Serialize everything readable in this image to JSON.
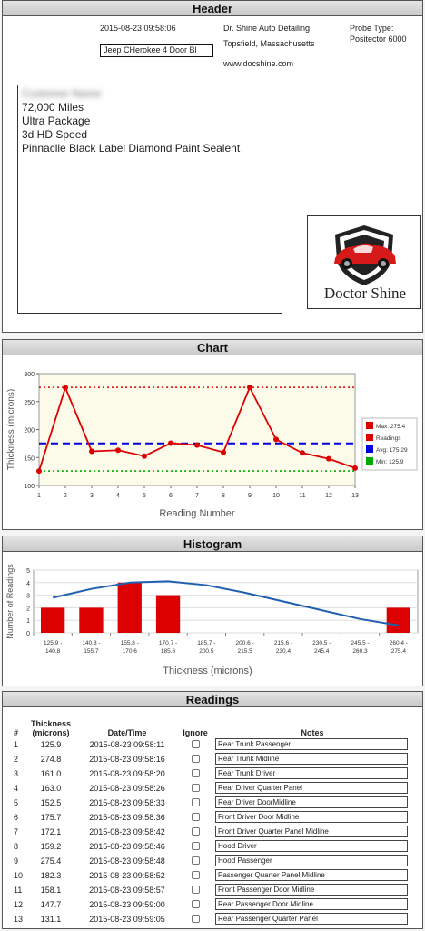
{
  "header": {
    "title": "Header",
    "datetime": "2015-08-23 09:58:06",
    "vehicle_input_value": "Jeep CHerokee 4 Door Bl",
    "business_name": "Dr. Shine Auto Detailing",
    "location": "Topsfield, Massachusetts",
    "website": "www.docshine.com",
    "probe_label": "Probe Type:",
    "probe_value": "Positector 6000",
    "vehicle_lines": [
      "Customer Name",
      "72,000 Miles",
      "Ultra Package",
      "3d HD Speed",
      "Pinnaclle Black Label Diamond Paint Sealent"
    ],
    "logo_text": "Doctor Shine"
  },
  "chart_section": {
    "title": "Chart"
  },
  "histogram_section": {
    "title": "Histogram"
  },
  "readings_section": {
    "title": "Readings",
    "columns": [
      "#",
      "Thickness (microns)",
      "Date/Time",
      "Ignore",
      "Notes"
    ],
    "rows": [
      {
        "n": "1",
        "t": "125.9",
        "dt": "2015-08-23 09:58:11",
        "note": "Rear Trunk Passenger"
      },
      {
        "n": "2",
        "t": "274.8",
        "dt": "2015-08-23 09:58:16",
        "note": "Rear Trunk Midline"
      },
      {
        "n": "3",
        "t": "161.0",
        "dt": "2015-08-23 09:58:20",
        "note": "Rear Trunk Driver"
      },
      {
        "n": "4",
        "t": "163.0",
        "dt": "2015-08-23 09:58:26",
        "note": "Rear Driver Quarter Panel"
      },
      {
        "n": "5",
        "t": "152.5",
        "dt": "2015-08-23 09:58:33",
        "note": "Rear Driver DoorMidline"
      },
      {
        "n": "6",
        "t": "175.7",
        "dt": "2015-08-23 09:58:36",
        "note": "Front Driver Door Midline"
      },
      {
        "n": "7",
        "t": "172.1",
        "dt": "2015-08-23 09:58:42",
        "note": "Front Driver Quarter Panel Midline"
      },
      {
        "n": "8",
        "t": "159.2",
        "dt": "2015-08-23 09:58:46",
        "note": "Hood Driver"
      },
      {
        "n": "9",
        "t": "275.4",
        "dt": "2015-08-23 09:58:48",
        "note": "Hood Passenger"
      },
      {
        "n": "10",
        "t": "182.3",
        "dt": "2015-08-23 09:58:52",
        "note": "Passenger Quarter Panel Midline"
      },
      {
        "n": "11",
        "t": "158.1",
        "dt": "2015-08-23 09:58:57",
        "note": "Front Passenger Door Midline"
      },
      {
        "n": "12",
        "t": "147.7",
        "dt": "2015-08-23 09:59:00",
        "note": "Rear Passenger Door Midline"
      },
      {
        "n": "13",
        "t": "131.1",
        "dt": "2015-08-23 09:59:05",
        "note": "Rear Passenger Quarter Panel"
      }
    ]
  },
  "colors": {
    "readings": "#dd0000",
    "max": "#dd0000",
    "avg": "#0000dd",
    "min": "#00aa00",
    "curve": "#1f5fb0"
  },
  "chart_data": [
    {
      "type": "line",
      "xlabel": "Reading Number",
      "ylabel": "Thickness (microns)",
      "xlim": [
        1,
        13
      ],
      "ylim": [
        100,
        300
      ],
      "x_ticks": [
        "1",
        "2",
        "3",
        "4",
        "5",
        "6",
        "7",
        "8",
        "9",
        "10",
        "11",
        "12",
        "13"
      ],
      "y_ticks": [
        "100",
        "150",
        "200",
        "250",
        "300"
      ],
      "x": [
        1,
        2,
        3,
        4,
        5,
        6,
        7,
        8,
        9,
        10,
        11,
        12,
        13
      ],
      "series": [
        {
          "name": "Readings",
          "values": [
            125.9,
            274.8,
            161.0,
            163.0,
            152.5,
            175.7,
            172.1,
            159.2,
            275.4,
            182.3,
            158.1,
            147.7,
            131.1
          ]
        }
      ],
      "reference_lines": [
        {
          "name": "Max: 275.4",
          "value": 275.4,
          "style": "dotted"
        },
        {
          "name": "Avg: 175.29",
          "value": 175.29,
          "style": "dashed"
        },
        {
          "name": "Min: 125.9",
          "value": 125.9,
          "style": "dotted"
        }
      ],
      "legend": [
        "Max: 275.4",
        "Readings",
        "Avg: 175.29",
        "Min: 125.9"
      ],
      "legend_position": "right",
      "grid": false
    },
    {
      "type": "bar",
      "xlabel": "Thickness (microns)",
      "ylabel": "Number of Readings",
      "ylim": [
        0,
        5
      ],
      "y_ticks": [
        "0",
        "1",
        "2",
        "3",
        "4",
        "5"
      ],
      "categories": [
        [
          "125.9 -",
          "140.8"
        ],
        [
          "140.8 -",
          "155.7"
        ],
        [
          "155.8 -",
          "170.6"
        ],
        [
          "170.7 -",
          "185.6"
        ],
        [
          "185.7 -",
          "200.5"
        ],
        [
          "200.6 -",
          "215.5"
        ],
        [
          "215.6 -",
          "230.4"
        ],
        [
          "230.5 -",
          "245.4"
        ],
        [
          "245.5 -",
          "260.3"
        ],
        [
          "260.4 -",
          "275.4"
        ]
      ],
      "values": [
        2,
        2,
        4,
        3,
        0,
        0,
        0,
        0,
        0,
        2
      ],
      "curve": [
        2.8,
        3.5,
        4.0,
        4.1,
        3.8,
        3.2,
        2.5,
        1.8,
        1.1,
        0.6
      ],
      "grid": true
    }
  ]
}
